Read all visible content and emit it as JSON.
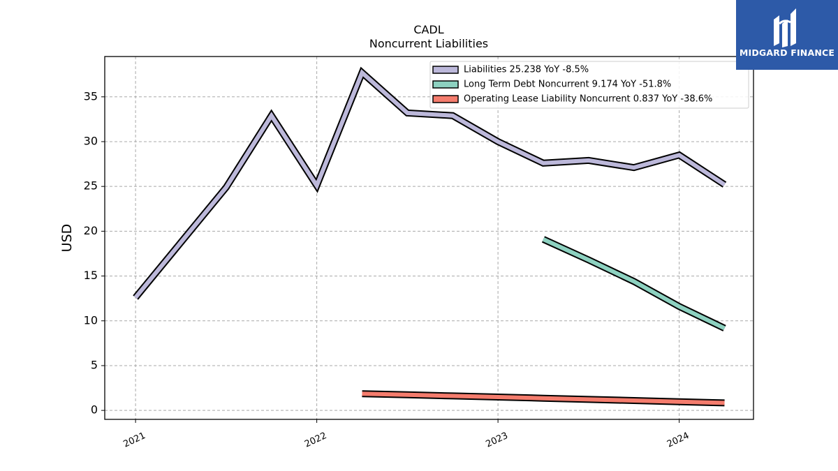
{
  "brand": {
    "name": "MIDGARD FINANCE",
    "color": "#2d5aa8"
  },
  "chart_data": {
    "type": "line",
    "title": "CADL",
    "subtitle": "Noncurrent  Liabilities",
    "ylabel": "USD",
    "xlabel": "",
    "ylim": [
      -1,
      39.5
    ],
    "xlim": [
      2020.83,
      2024.41
    ],
    "yticks": [
      0,
      5,
      10,
      15,
      20,
      25,
      30,
      35
    ],
    "xticks": [
      {
        "value": 2021,
        "label": "2021"
      },
      {
        "value": 2022,
        "label": "2022"
      },
      {
        "value": 2023,
        "label": "2023"
      },
      {
        "value": 2024,
        "label": "2024"
      }
    ],
    "grid": true,
    "legend_position": "top-right",
    "series": [
      {
        "name": "Liabilities  25.238 YoY -8.5%",
        "color": "#bcb8da",
        "x": [
          2021.0,
          2021.5,
          2021.75,
          2022.0,
          2022.25,
          2022.5,
          2022.75,
          2023.0,
          2023.25,
          2023.5,
          2023.75,
          2024.0,
          2024.25
        ],
        "y": [
          12.6,
          24.9,
          32.9,
          25.1,
          37.7,
          33.2,
          32.9,
          30.0,
          27.6,
          27.9,
          27.1,
          28.5,
          25.2
        ]
      },
      {
        "name": "Long Term Debt Noncurrent  9.174 YoY -51.8%",
        "color": "#8dd1c0",
        "x": [
          2023.25,
          2023.5,
          2023.75,
          2024.0,
          2024.25
        ],
        "y": [
          19.1,
          16.8,
          14.4,
          11.6,
          9.17
        ]
      },
      {
        "name": "Operating Lease Liability Noncurrent  0.837 YoY -38.6%",
        "color": "#f47c6d",
        "x": [
          2022.25,
          2022.5,
          2022.75,
          2023.0,
          2023.25,
          2023.5,
          2023.75,
          2024.0,
          2024.25
        ],
        "y": [
          1.87,
          1.74,
          1.62,
          1.49,
          1.36,
          1.23,
          1.1,
          0.96,
          0.84
        ]
      }
    ]
  }
}
